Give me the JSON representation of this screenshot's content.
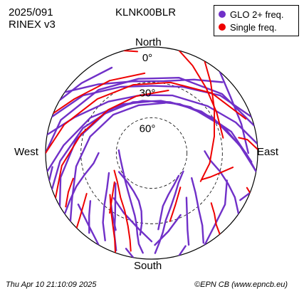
{
  "header": {
    "date": "2025/091",
    "format": "RINEX v3",
    "station": "KLNK00BLR"
  },
  "footer": {
    "timestamp": "Thu Apr 10 21:10:09 2025",
    "credit": "©EPN CB (www.epncb.eu)"
  },
  "colors": {
    "glo": "#7030c8",
    "single": "#ee0000"
  },
  "chart_data": {
    "type": "polar-skyplot",
    "directions": {
      "north": "North",
      "south": "South",
      "east": "East",
      "west": "West"
    },
    "elevation_rings": [
      {
        "elevation": 0,
        "label": "0°"
      },
      {
        "elevation": 30,
        "label": "30°"
      },
      {
        "elevation": 60,
        "label": "60°"
      }
    ],
    "legend": [
      {
        "name": "GLO 2+ freq.",
        "color": "#7030c8"
      },
      {
        "name": "Single freq.",
        "color": "#ee0000"
      }
    ],
    "series": [
      {
        "name": "GLO 2+ freq.",
        "color": "#7030c8",
        "tracks": [
          [
            [
              -100,
              0
            ],
            [
              -85,
              15
            ],
            [
              -60,
              30
            ],
            [
              -30,
              42
            ],
            [
              0,
              46
            ],
            [
              30,
              42
            ],
            [
              60,
              30
            ],
            [
              85,
              15
            ],
            [
              100,
              0
            ]
          ],
          [
            [
              -110,
              0
            ],
            [
              -95,
              12
            ],
            [
              -70,
              28
            ],
            [
              -40,
              40
            ],
            [
              -10,
              45
            ],
            [
              20,
              44
            ],
            [
              50,
              35
            ],
            [
              75,
              20
            ],
            [
              95,
              5
            ]
          ],
          [
            [
              -120,
              0
            ],
            [
              -105,
              10
            ],
            [
              -80,
              25
            ],
            [
              -50,
              38
            ],
            [
              -20,
              44
            ],
            [
              10,
              45
            ],
            [
              40,
              39
            ],
            [
              70,
              25
            ],
            [
              90,
              10
            ],
            [
              100,
              0
            ]
          ],
          [
            [
              -80,
              0
            ],
            [
              -65,
              18
            ],
            [
              -40,
              33
            ],
            [
              -10,
              40
            ],
            [
              20,
              38
            ],
            [
              50,
              28
            ],
            [
              70,
              14
            ],
            [
              85,
              0
            ]
          ],
          [
            [
              -130,
              0
            ],
            [
              -120,
              12
            ],
            [
              -100,
              25
            ],
            [
              -75,
              36
            ],
            [
              -45,
              44
            ],
            [
              -15,
              48
            ],
            [
              15,
              46
            ]
          ],
          [
            [
              -70,
              0
            ],
            [
              -50,
              14
            ],
            [
              -25,
              28
            ],
            [
              0,
              33
            ],
            [
              25,
              28
            ],
            [
              50,
              14
            ],
            [
              70,
              0
            ]
          ],
          [
            [
              -55,
              0
            ],
            [
              -38,
              16
            ],
            [
              -15,
              27
            ],
            [
              10,
              28
            ],
            [
              30,
              18
            ],
            [
              45,
              5
            ]
          ],
          [
            [
              -90,
              0
            ],
            [
              -70,
              8
            ],
            [
              -40,
              20
            ],
            [
              -10,
              26
            ],
            [
              20,
              22
            ],
            [
              50,
              12
            ],
            [
              75,
              0
            ]
          ],
          [
            [
              -150,
              0
            ],
            [
              -140,
              8
            ],
            [
              -125,
              14
            ]
          ],
          [
            [
              150,
              0
            ],
            [
              140,
              8
            ],
            [
              125,
              14
            ],
            [
              110,
              22
            ]
          ],
          [
            [
              -170,
              0
            ],
            [
              -165,
              6
            ]
          ],
          [
            [
              165,
              0
            ],
            [
              160,
              6
            ]
          ],
          [
            [
              -180,
              15
            ],
            [
              -170,
              25
            ],
            [
              -155,
              34
            ],
            [
              -140,
              40
            ]
          ],
          [
            [
              178,
              12
            ],
            [
              168,
              22
            ],
            [
              155,
              32
            ]
          ],
          [
            [
              -60,
              0
            ],
            [
              -45,
              6
            ],
            [
              -25,
              10
            ]
          ],
          [
            [
              40,
              0
            ],
            [
              55,
              8
            ],
            [
              72,
              10
            ],
            [
              90,
              8
            ]
          ],
          [
            [
              -105,
              0
            ],
            [
              -98,
              5
            ]
          ],
          [
            [
              112,
              0
            ],
            [
              118,
              5
            ]
          ],
          [
            [
              -155,
              18
            ],
            [
              -150,
              25
            ],
            [
              -145,
              31
            ],
            [
              -140,
              36
            ]
          ],
          [
            [
              -172,
              20
            ],
            [
              -172,
              30
            ],
            [
              -170,
              40
            ],
            [
              -165,
              48
            ],
            [
              -155,
              54
            ],
            [
              -140,
              58
            ],
            [
              -120,
              58
            ]
          ],
          [
            [
              175,
              25
            ],
            [
              172,
              35
            ],
            [
              168,
              44
            ],
            [
              158,
              52
            ],
            [
              145,
              57
            ],
            [
              130,
              60
            ]
          ],
          [
            [
              -160,
              2
            ],
            [
              -155,
              15
            ],
            [
              -150,
              28
            ],
            [
              -142,
              40
            ],
            [
              -130,
              50
            ]
          ],
          [
            [
              150,
              2
            ],
            [
              145,
              15
            ],
            [
              140,
              28
            ],
            [
              132,
              40
            ],
            [
              122,
              50
            ]
          ],
          [
            [
              -175,
              5
            ],
            [
              -172,
              12
            ],
            [
              -170,
              20
            ],
            [
              -168,
              28
            ],
            [
              -165,
              35
            ],
            [
              -158,
              44
            ],
            [
              -148,
              52
            ],
            [
              -135,
              58
            ],
            [
              -118,
              62
            ],
            [
              -100,
              63
            ],
            [
              -85,
              62
            ]
          ],
          [
            [
              178,
              5
            ],
            [
              175,
              14
            ],
            [
              172,
              22
            ],
            [
              168,
              32
            ],
            [
              160,
              42
            ],
            [
              150,
              50
            ],
            [
              138,
              56
            ],
            [
              120,
              59
            ]
          ],
          [
            [
              -152,
              6
            ],
            [
              -145,
              18
            ],
            [
              -138,
              30
            ],
            [
              -128,
              42
            ],
            [
              -115,
              50
            ]
          ],
          [
            [
              158,
              6
            ],
            [
              155,
              18
            ],
            [
              150,
              30
            ],
            [
              142,
              42
            ]
          ],
          [
            [
              -125,
              0
            ],
            [
              -120,
              10
            ],
            [
              -114,
              20
            ],
            [
              -108,
              30
            ],
            [
              -100,
              40
            ],
            [
              -90,
              45
            ]
          ],
          [
            [
              125,
              0
            ],
            [
              118,
              10
            ],
            [
              112,
              20
            ],
            [
              105,
              30
            ],
            [
              97,
              40
            ],
            [
              88,
              45
            ]
          ],
          [
            [
              -142,
              4
            ],
            [
              -135,
              15
            ],
            [
              -128,
              24
            ]
          ]
        ]
      },
      {
        "name": "Single freq.",
        "color": "#ee0000",
        "tracks": [
          [
            [
              -90,
              0
            ],
            [
              -72,
              12
            ],
            [
              -45,
              25
            ],
            [
              -15,
              30
            ],
            [
              15,
              28
            ],
            [
              45,
              18
            ],
            [
              70,
              5
            ]
          ],
          [
            [
              -115,
              0
            ],
            [
              -98,
              13
            ],
            [
              -75,
              28
            ],
            [
              -45,
              38
            ],
            [
              -15,
              40
            ],
            [
              15,
              35
            ]
          ],
          [
            [
              -68,
              0
            ],
            [
              -55,
              10
            ],
            [
              -30,
              19
            ],
            [
              -5,
              22
            ]
          ],
          [
            [
              15,
              0
            ],
            [
              25,
              8
            ],
            [
              40,
              18
            ],
            [
              58,
              25
            ],
            [
              78,
              28
            ]
          ],
          [
            [
              30,
              0
            ],
            [
              40,
              12
            ],
            [
              55,
              25
            ],
            [
              75,
              35
            ],
            [
              100,
              40
            ],
            [
              120,
              42
            ]
          ],
          [
            [
              -135,
              0
            ],
            [
              -132,
              8
            ],
            [
              -128,
              16
            ],
            [
              -122,
              25
            ]
          ],
          [
            [
              -168,
              5
            ],
            [
              -166,
              14
            ],
            [
              -162,
              25
            ],
            [
              -155,
              36
            ],
            [
              -145,
              44
            ],
            [
              -130,
              52
            ],
            [
              -115,
              55
            ]
          ],
          [
            [
              -160,
              0
            ],
            [
              -157,
              10
            ],
            [
              -152,
              20
            ],
            [
              -145,
              30
            ],
            [
              -135,
              40
            ]
          ],
          [
            [
              140,
              0
            ],
            [
              138,
              8
            ],
            [
              134,
              16
            ],
            [
              130,
              24
            ]
          ],
          [
            [
              -122,
              4
            ],
            [
              -115,
              12
            ],
            [
              -108,
              20
            ]
          ],
          [
            [
              112,
              0
            ],
            [
              110,
              4
            ]
          ],
          [
            [
              -145,
              28
            ],
            [
              -138,
              40
            ],
            [
              -128,
              50
            ]
          ],
          [
            [
              165,
              30
            ],
            [
              155,
              42
            ],
            [
              140,
              52
            ]
          ],
          [
            [
              100,
              20
            ],
            [
              105,
              28
            ],
            [
              112,
              36
            ],
            [
              118,
              42
            ]
          ],
          [
            [
              -15,
              0
            ],
            [
              -8,
              3
            ]
          ],
          [
            [
              88,
              0
            ],
            [
              82,
              8
            ],
            [
              80,
              15
            ]
          ]
        ]
      }
    ]
  }
}
